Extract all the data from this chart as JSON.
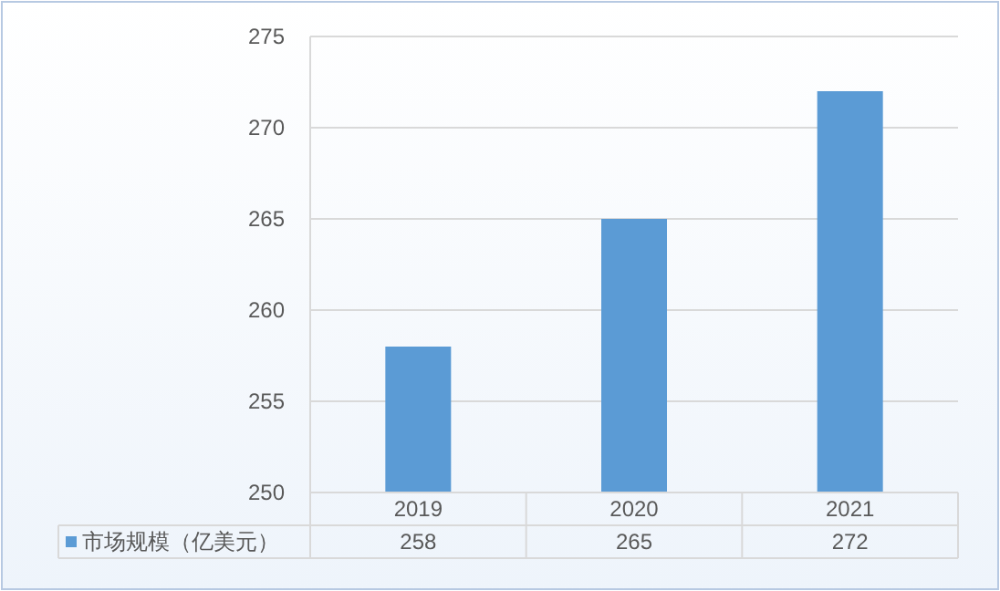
{
  "chart_data": {
    "type": "bar",
    "categories": [
      "2019",
      "2020",
      "2021"
    ],
    "series": [
      {
        "name": "市场规模（亿美元）",
        "color": "#5b9bd5",
        "values": [
          258,
          265,
          272
        ]
      }
    ],
    "ylim": [
      250,
      275
    ],
    "yticks": [
      250,
      255,
      260,
      265,
      270,
      275
    ],
    "grid": "y",
    "data_labels": true,
    "legend": "bottom"
  }
}
